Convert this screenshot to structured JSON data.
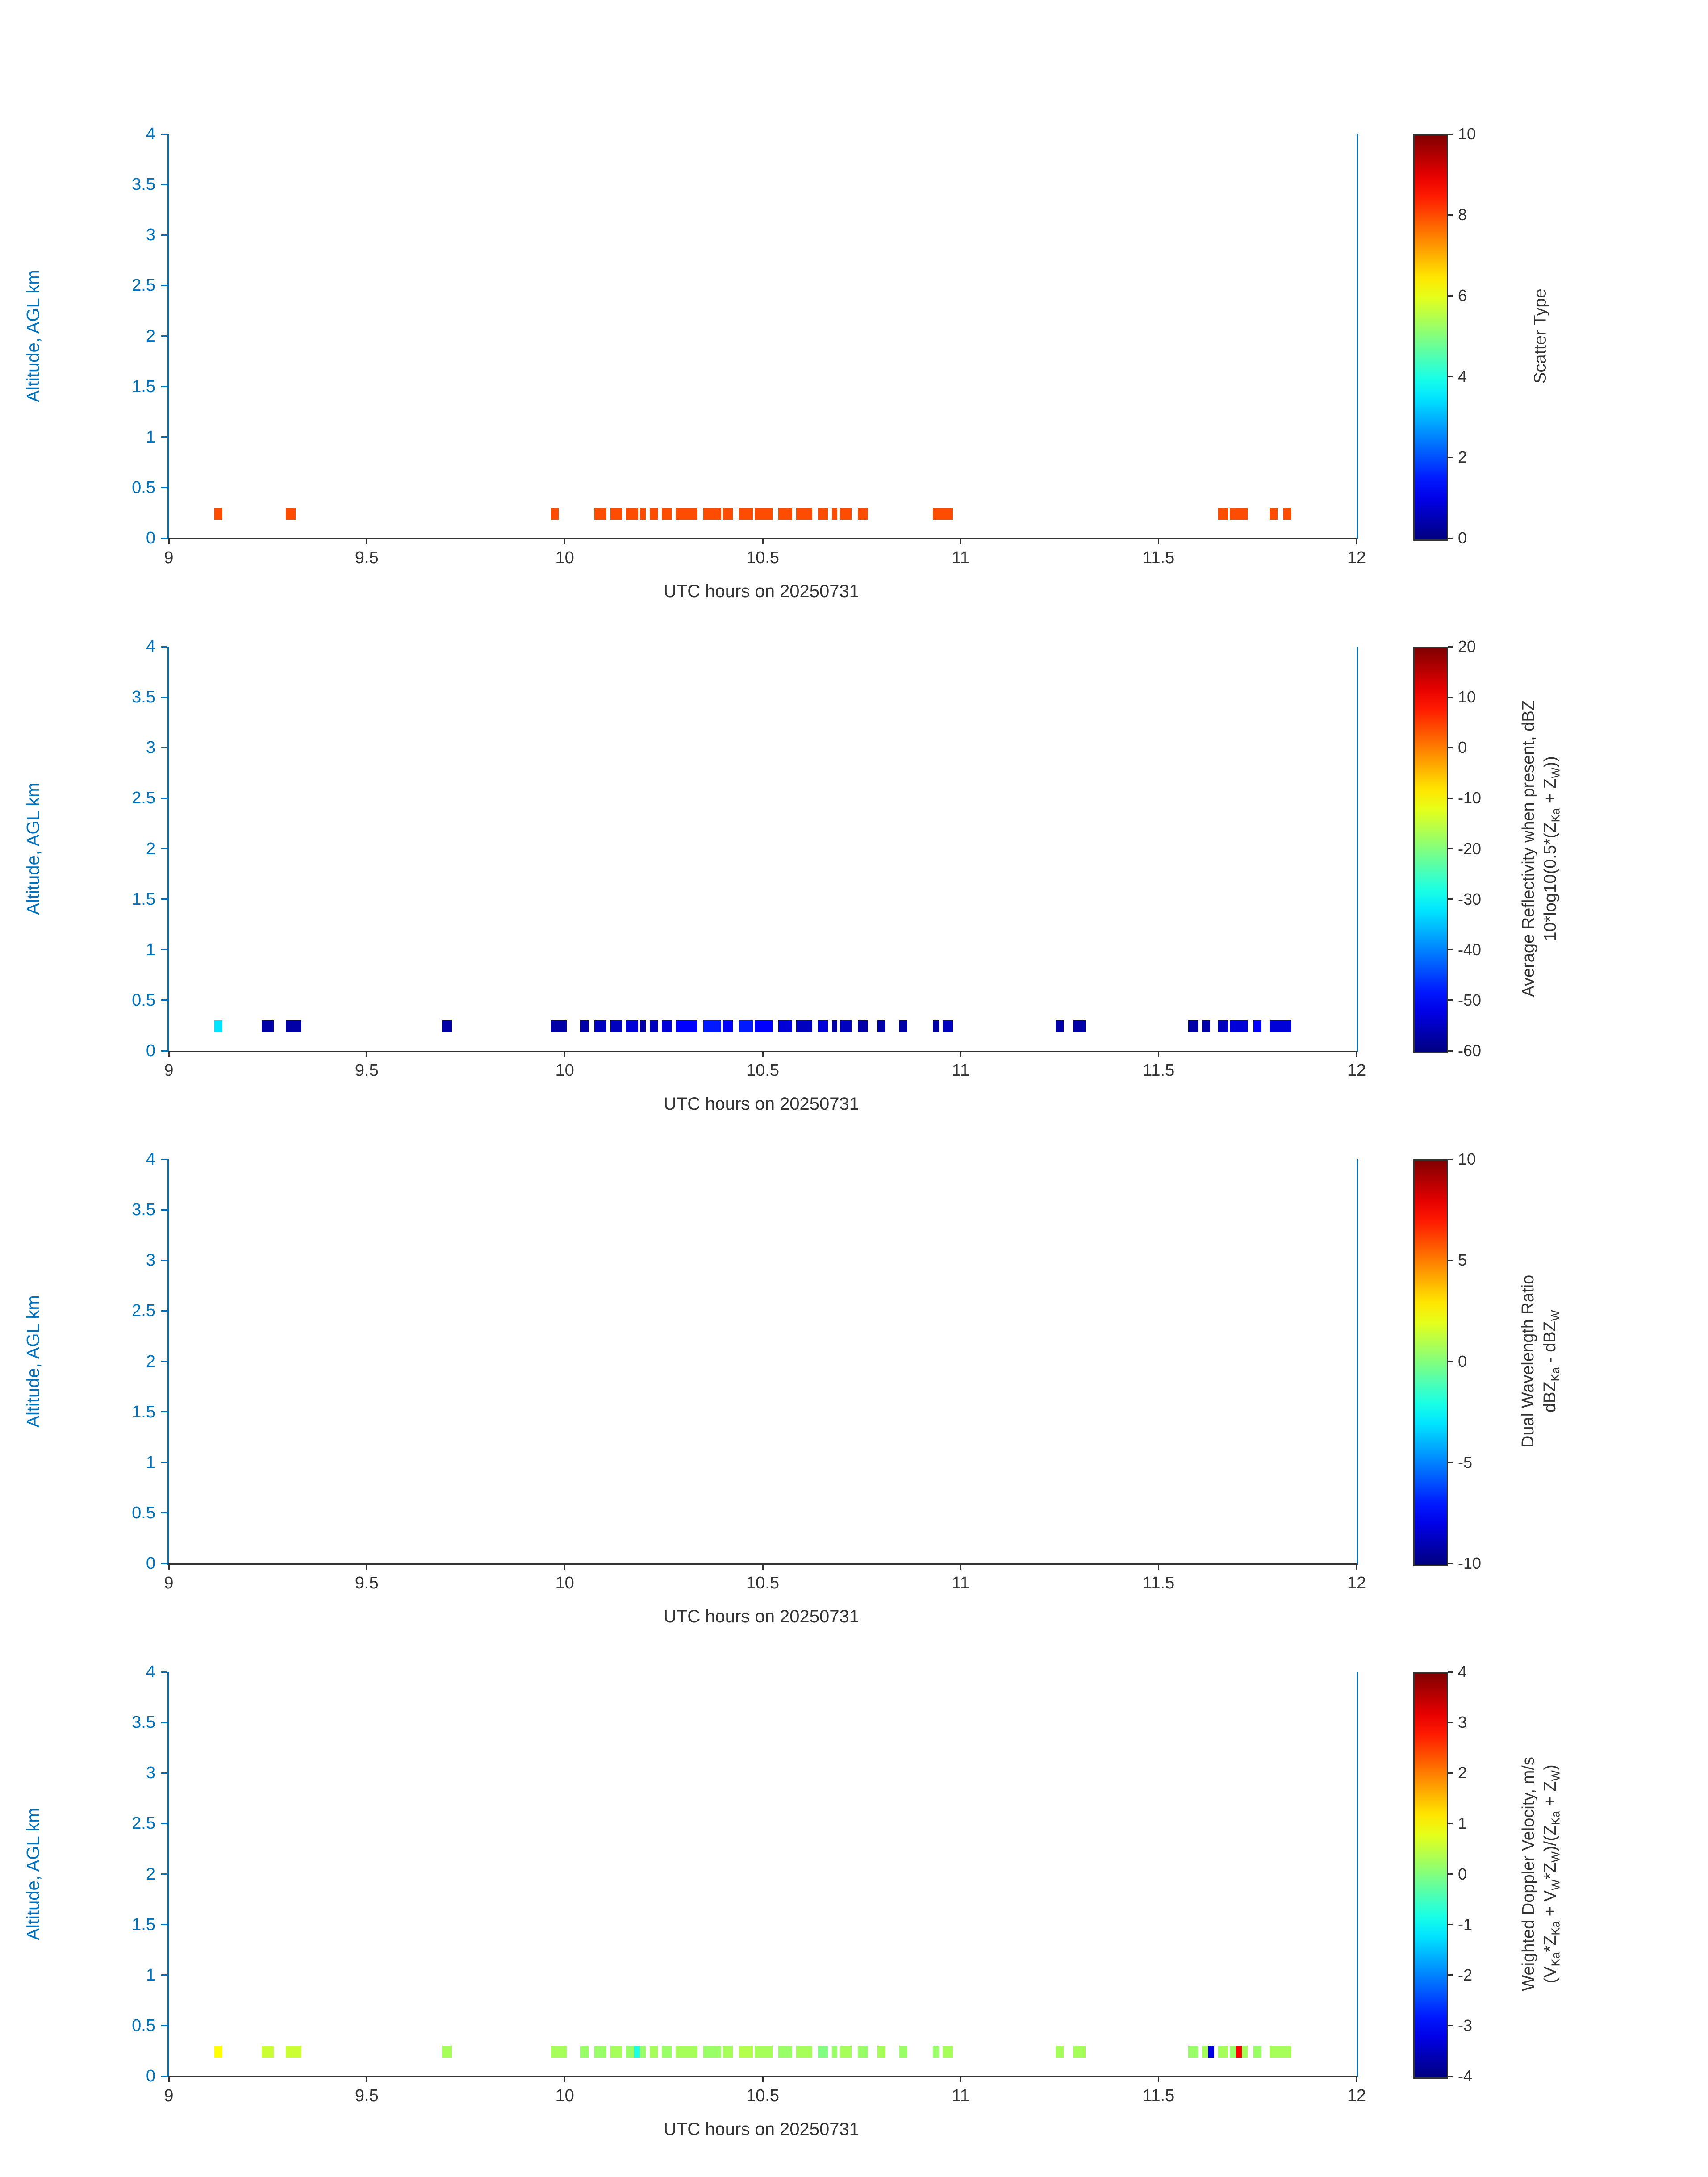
{
  "figure": {
    "background": "#ffffff",
    "colors": {
      "y_axis": "#0072BD",
      "x_axis": "#333333",
      "colormap": "jet"
    },
    "points_format": [
      "x0_utc_hours",
      "x1_utc_hours",
      "value"
    ],
    "altitude_band_km": [
      0.18,
      0.3
    ]
  },
  "chart_data": [
    {
      "type": "heatmap",
      "title": "",
      "xlabel": "UTC hours on 20250731",
      "ylabel": "Altitude, AGL km",
      "xlim": [
        9,
        12
      ],
      "ylim": [
        0,
        4
      ],
      "xticks": [
        9,
        9.5,
        10,
        10.5,
        11,
        11.5,
        12
      ],
      "yticks": [
        0,
        0.5,
        1,
        1.5,
        2,
        2.5,
        3,
        3.5,
        4
      ],
      "grid": false,
      "colorbar": {
        "label_lines": [
          "Scatter Type"
        ],
        "min": 0,
        "max": 10,
        "ticks": [
          0,
          2,
          4,
          6,
          8,
          10
        ]
      },
      "points": [
        [
          9.115,
          9.135,
          8
        ],
        [
          9.295,
          9.32,
          8
        ],
        [
          9.965,
          9.985,
          8
        ],
        [
          10.075,
          10.105,
          8
        ],
        [
          10.115,
          10.145,
          8
        ],
        [
          10.155,
          10.185,
          8
        ],
        [
          10.19,
          10.205,
          8
        ],
        [
          10.215,
          10.235,
          8
        ],
        [
          10.245,
          10.27,
          8
        ],
        [
          10.28,
          10.335,
          8
        ],
        [
          10.35,
          10.395,
          8
        ],
        [
          10.4,
          10.425,
          8
        ],
        [
          10.44,
          10.475,
          8
        ],
        [
          10.48,
          10.525,
          8
        ],
        [
          10.54,
          10.575,
          8
        ],
        [
          10.585,
          10.625,
          8
        ],
        [
          10.64,
          10.665,
          8
        ],
        [
          10.675,
          10.685,
          8
        ],
        [
          10.695,
          10.725,
          8
        ],
        [
          10.74,
          10.765,
          8
        ],
        [
          10.93,
          10.98,
          8
        ],
        [
          11.65,
          11.675,
          8
        ],
        [
          11.68,
          11.725,
          8
        ],
        [
          11.78,
          11.8,
          8
        ],
        [
          11.815,
          11.835,
          8
        ]
      ]
    },
    {
      "type": "heatmap",
      "title": "",
      "xlabel": "UTC hours on 20250731",
      "ylabel": "Altitude, AGL km",
      "xlim": [
        9,
        12
      ],
      "ylim": [
        0,
        4
      ],
      "xticks": [
        9,
        9.5,
        10,
        10.5,
        11,
        11.5,
        12
      ],
      "yticks": [
        0,
        0.5,
        1,
        1.5,
        2,
        2.5,
        3,
        3.5,
        4
      ],
      "grid": false,
      "colorbar": {
        "label_lines": [
          "Average Reflectivity when present, dBZ",
          "10*log10(0.5*(Z_{Ka} + Z_{W}))"
        ],
        "min": -60,
        "max": 20,
        "ticks": [
          -60,
          -50,
          -40,
          -30,
          -20,
          -10,
          0,
          10,
          20
        ]
      },
      "points": [
        [
          9.115,
          9.135,
          -32
        ],
        [
          9.235,
          9.265,
          -57
        ],
        [
          9.295,
          9.335,
          -57
        ],
        [
          9.69,
          9.715,
          -57
        ],
        [
          9.965,
          10.005,
          -57
        ],
        [
          10.04,
          10.06,
          -57
        ],
        [
          10.075,
          10.105,
          -55
        ],
        [
          10.115,
          10.145,
          -55
        ],
        [
          10.155,
          10.185,
          -53
        ],
        [
          10.19,
          10.205,
          -57
        ],
        [
          10.215,
          10.235,
          -55
        ],
        [
          10.245,
          10.27,
          -53
        ],
        [
          10.28,
          10.335,
          -50
        ],
        [
          10.35,
          10.395,
          -48
        ],
        [
          10.4,
          10.425,
          -50
        ],
        [
          10.44,
          10.475,
          -48
        ],
        [
          10.48,
          10.525,
          -50
        ],
        [
          10.54,
          10.575,
          -53
        ],
        [
          10.585,
          10.625,
          -55
        ],
        [
          10.64,
          10.665,
          -53
        ],
        [
          10.675,
          10.685,
          -57
        ],
        [
          10.695,
          10.725,
          -55
        ],
        [
          10.74,
          10.765,
          -57
        ],
        [
          10.79,
          10.81,
          -57
        ],
        [
          10.845,
          10.865,
          -57
        ],
        [
          10.93,
          10.945,
          -57
        ],
        [
          10.955,
          10.98,
          -55
        ],
        [
          11.24,
          11.26,
          -57
        ],
        [
          11.285,
          11.315,
          -57
        ],
        [
          11.575,
          11.6,
          -57
        ],
        [
          11.61,
          11.63,
          -57
        ],
        [
          11.65,
          11.675,
          -55
        ],
        [
          11.68,
          11.725,
          -53
        ],
        [
          11.74,
          11.76,
          -50
        ],
        [
          11.78,
          11.835,
          -53
        ]
      ]
    },
    {
      "type": "heatmap",
      "title": "",
      "xlabel": "UTC hours on 20250731",
      "ylabel": "Altitude, AGL km",
      "xlim": [
        9,
        12
      ],
      "ylim": [
        0,
        4
      ],
      "xticks": [
        9,
        9.5,
        10,
        10.5,
        11,
        11.5,
        12
      ],
      "yticks": [
        0,
        0.5,
        1,
        1.5,
        2,
        2.5,
        3,
        3.5,
        4
      ],
      "grid": false,
      "colorbar": {
        "label_lines": [
          "Dual Wavelength Ratio",
          "dBZ_{Ka} - dBZ_{W}"
        ],
        "min": -10,
        "max": 10,
        "ticks": [
          -10,
          -5,
          0,
          5,
          10
        ]
      },
      "points": []
    },
    {
      "type": "heatmap",
      "title": "",
      "xlabel": "UTC hours on 20250731",
      "ylabel": "Altitude, AGL km",
      "xlim": [
        9,
        12
      ],
      "ylim": [
        0,
        4
      ],
      "xticks": [
        9,
        9.5,
        10,
        10.5,
        11,
        11.5,
        12
      ],
      "yticks": [
        0,
        0.5,
        1,
        1.5,
        2,
        2.5,
        3,
        3.5,
        4
      ],
      "grid": false,
      "colorbar": {
        "label_lines": [
          "Weighted Doppler Velocity, m/s",
          "(V_{Ka}*Z_{Ka} + V_{W}*Z_{W})/(Z_{Ka} + Z_{W})"
        ],
        "min": -4,
        "max": 4,
        "ticks": [
          -4,
          -3,
          -2,
          -1,
          0,
          1,
          2,
          3,
          4
        ]
      },
      "points": [
        [
          9.115,
          9.135,
          1
        ],
        [
          9.235,
          9.265,
          0.6
        ],
        [
          9.295,
          9.335,
          0.6
        ],
        [
          9.69,
          9.715,
          0.3
        ],
        [
          9.965,
          10.005,
          0.3
        ],
        [
          10.04,
          10.06,
          0.2
        ],
        [
          10.075,
          10.105,
          0.2
        ],
        [
          10.115,
          10.145,
          0.3
        ],
        [
          10.155,
          10.175,
          0.2
        ],
        [
          10.175,
          10.19,
          -0.8
        ],
        [
          10.19,
          10.205,
          0.2
        ],
        [
          10.215,
          10.235,
          0.3
        ],
        [
          10.245,
          10.27,
          0.2
        ],
        [
          10.28,
          10.335,
          0.3
        ],
        [
          10.35,
          10.395,
          0.2
        ],
        [
          10.4,
          10.425,
          0.3
        ],
        [
          10.44,
          10.475,
          0.4
        ],
        [
          10.48,
          10.525,
          0.3
        ],
        [
          10.54,
          10.575,
          0.2
        ],
        [
          10.585,
          10.625,
          0.3
        ],
        [
          10.64,
          10.665,
          0
        ],
        [
          10.675,
          10.685,
          0.2
        ],
        [
          10.695,
          10.725,
          0.3
        ],
        [
          10.74,
          10.765,
          0.2
        ],
        [
          10.79,
          10.81,
          0.3
        ],
        [
          10.845,
          10.865,
          0.2
        ],
        [
          10.93,
          10.945,
          0.2
        ],
        [
          10.955,
          10.98,
          0.3
        ],
        [
          11.24,
          11.26,
          0.3
        ],
        [
          11.285,
          11.315,
          0.3
        ],
        [
          11.575,
          11.6,
          0.2
        ],
        [
          11.61,
          11.625,
          0.3
        ],
        [
          11.625,
          11.64,
          -3.2
        ],
        [
          11.65,
          11.675,
          0.3
        ],
        [
          11.68,
          11.695,
          0.2
        ],
        [
          11.695,
          11.71,
          3
        ],
        [
          11.71,
          11.725,
          0.3
        ],
        [
          11.74,
          11.76,
          0.2
        ],
        [
          11.78,
          11.835,
          0.3
        ]
      ]
    }
  ]
}
